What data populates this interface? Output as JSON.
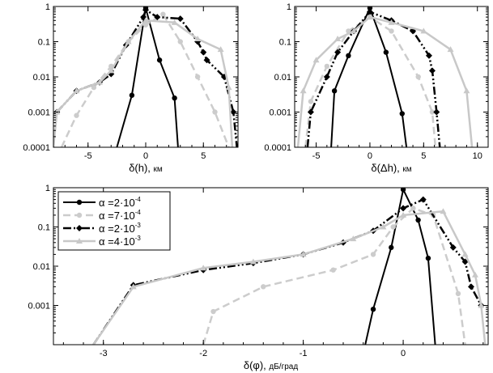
{
  "legend": [
    {
      "alpha_label": "α =2·10",
      "exponent": "-4"
    },
    {
      "alpha_label": "α =7·10",
      "exponent": "-4"
    },
    {
      "alpha_label": "α =2·10",
      "exponent": "-3"
    },
    {
      "alpha_label": "α =4·10",
      "exponent": "-3"
    }
  ],
  "series_styles": [
    {
      "color": "#000000",
      "dash": "",
      "marker": "circle",
      "width": 2
    },
    {
      "color": "#cccccc",
      "dash": "9,5",
      "marker": "circle",
      "width": 2.5
    },
    {
      "color": "#000000",
      "dash": "10,3,2,3,2,3",
      "marker": "diamond",
      "width": 2.5
    },
    {
      "color": "#c8c8c8",
      "dash": "",
      "marker": "triangle",
      "width": 2.5
    }
  ],
  "chart_data": [
    {
      "type": "line",
      "xlabel": "δ(h),",
      "xunit": "км",
      "xlim": [
        -8,
        8
      ],
      "ylim": [
        0.0001,
        1
      ],
      "yscale": "log",
      "xticks": [
        -5,
        0,
        5
      ],
      "yticks": [
        {
          "v": 1,
          "label": "1"
        },
        {
          "v": 0.1,
          "label": "0.1"
        },
        {
          "v": 0.01,
          "label": "0.01"
        },
        {
          "v": 0.001,
          "label": "0.001"
        },
        {
          "v": 0.0001,
          "label": "0.0001"
        }
      ],
      "series": [
        {
          "x": [
            -2.5,
            -1.2,
            0,
            1.2,
            2.5,
            2.8
          ],
          "y": [
            0.0001,
            0.003,
            0.9,
            0.03,
            0.0025,
            0.0001
          ]
        },
        {
          "x": [
            -7.3,
            -6,
            -4.5,
            -3,
            -1.5,
            0,
            1.5,
            3,
            4.5,
            6,
            7.2
          ],
          "y": [
            0.0001,
            0.0008,
            0.005,
            0.02,
            0.1,
            0.3,
            0.6,
            0.1,
            0.01,
            0.001,
            0.0001
          ]
        },
        {
          "x": [
            -7.7,
            -6,
            -4,
            -3,
            -1.7,
            -0.2,
            0,
            1,
            3,
            4.5,
            5,
            5.3,
            6.8,
            7.6,
            7.9
          ],
          "y": [
            0.001,
            0.004,
            0.007,
            0.012,
            0.08,
            0.5,
            0.8,
            0.5,
            0.45,
            0.1,
            0.05,
            0.03,
            0.01,
            0.001,
            0.0001
          ]
        },
        {
          "x": [
            -8,
            -7.7,
            -6,
            -4,
            -3,
            -1.5,
            0,
            2.5,
            4.5,
            6.5,
            7.2,
            7.5
          ],
          "y": [
            0.0001,
            0.001,
            0.004,
            0.007,
            0.015,
            0.1,
            0.4,
            0.35,
            0.12,
            0.06,
            0.005,
            0.0001
          ]
        }
      ]
    },
    {
      "type": "line",
      "xlabel": "δ(Δh),",
      "xunit": "км",
      "xlim": [
        -7,
        11
      ],
      "ylim": [
        0.0001,
        1
      ],
      "yscale": "log",
      "xticks": [
        -5,
        0,
        5,
        10
      ],
      "yticks": [
        {
          "v": 1,
          "label": "1"
        },
        {
          "v": 0.1,
          "label": "0.1"
        },
        {
          "v": 0.01,
          "label": "0.01"
        },
        {
          "v": 0.001,
          "label": "0.001"
        },
        {
          "v": 0.0001,
          "label": "0.0001"
        }
      ],
      "series": [
        {
          "x": [
            -3.6,
            -3.3,
            -2,
            0,
            1.5,
            3,
            3.4
          ],
          "y": [
            0.0001,
            0.004,
            0.04,
            0.9,
            0.05,
            0.0009,
            0.0001
          ]
        },
        {
          "x": [
            -6,
            -5.5,
            -4,
            -2,
            0,
            2,
            4.5,
            5.8,
            6.1
          ],
          "y": [
            0.0001,
            0.002,
            0.02,
            0.2,
            0.5,
            0.2,
            0.01,
            0.001,
            0.0001
          ]
        },
        {
          "x": [
            -5.8,
            -5.5,
            -4,
            -3,
            -1.5,
            0,
            2,
            4,
            5.5,
            5.8,
            6.2,
            6.5
          ],
          "y": [
            0.0001,
            0.001,
            0.01,
            0.05,
            0.2,
            0.7,
            0.4,
            0.2,
            0.04,
            0.015,
            0.001,
            0.0001
          ]
        },
        {
          "x": [
            -6.7,
            -6.2,
            -5,
            -3,
            -1.5,
            0,
            2,
            5,
            7.5,
            9,
            9.5
          ],
          "y": [
            0.0001,
            0.004,
            0.03,
            0.12,
            0.2,
            0.5,
            0.35,
            0.2,
            0.06,
            0.004,
            0.0001
          ]
        }
      ]
    },
    {
      "type": "line",
      "xlabel": "δ(φ),",
      "xunit": "дБ/град",
      "xlim": [
        -3.5,
        0.85
      ],
      "ylim": [
        0.0001,
        1
      ],
      "yscale": "log",
      "xticks": [
        -3,
        -2,
        -1,
        0
      ],
      "yticks": [
        {
          "v": 1,
          "label": "1"
        },
        {
          "v": 0.1,
          "label": "0.1"
        },
        {
          "v": 0.01,
          "label": "0.01"
        },
        {
          "v": 0.001,
          "label": "0.001"
        }
      ],
      "series": [
        {
          "x": [
            -0.38,
            -0.3,
            -0.12,
            0,
            0.15,
            0.25,
            0.32
          ],
          "y": [
            0.0001,
            0.0008,
            0.03,
            0.9,
            0.15,
            0.016,
            0.0001
          ]
        },
        {
          "x": [
            -2,
            -1.9,
            -1.4,
            -0.7,
            -0.3,
            -0.1,
            0.1,
            0.3,
            0.55,
            0.62
          ],
          "y": [
            0.0001,
            0.0007,
            0.003,
            0.008,
            0.02,
            0.1,
            0.3,
            0.2,
            0.002,
            0.0001
          ]
        },
        {
          "x": [
            -3.1,
            -2.7,
            -2,
            -1.5,
            -1,
            -0.6,
            -0.3,
            0,
            0.2,
            0.5,
            0.62,
            0.68,
            0.78
          ],
          "y": [
            0.0001,
            0.0033,
            0.008,
            0.012,
            0.02,
            0.04,
            0.08,
            0.3,
            0.5,
            0.03,
            0.013,
            0.003,
            0.001
          ]
        },
        {
          "x": [
            -3.1,
            -2.7,
            -2,
            -1.5,
            -1,
            -0.5,
            -0.2,
            0,
            0.4,
            0.62,
            0.72,
            0.78,
            0.82
          ],
          "y": [
            0.0001,
            0.003,
            0.009,
            0.013,
            0.02,
            0.05,
            0.1,
            0.2,
            0.25,
            0.02,
            0.006,
            0.001,
            0.0001
          ]
        }
      ]
    }
  ]
}
